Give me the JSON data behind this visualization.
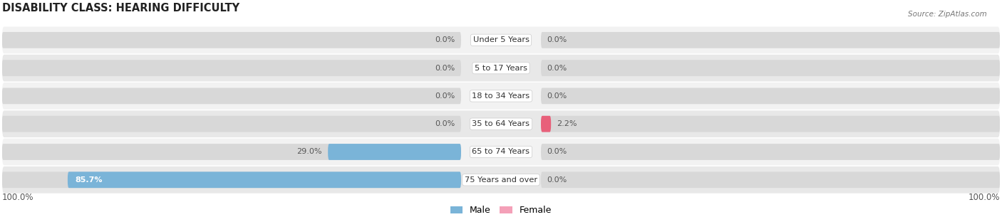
{
  "title": "DISABILITY CLASS: HEARING DIFFICULTY",
  "source": "Source: ZipAtlas.com",
  "categories": [
    "Under 5 Years",
    "5 to 17 Years",
    "18 to 34 Years",
    "35 to 64 Years",
    "65 to 74 Years",
    "75 Years and over"
  ],
  "male_values": [
    0.0,
    0.0,
    0.0,
    0.0,
    29.0,
    85.7
  ],
  "female_values": [
    0.0,
    0.0,
    0.0,
    2.2,
    0.0,
    0.0
  ],
  "male_color": "#7ab4d8",
  "female_color": "#f4a0b8",
  "female_color_dark": "#e8607a",
  "bar_bg_color": "#d8d8d8",
  "row_bg_even": "#f2f2f2",
  "row_bg_odd": "#e8e8e8",
  "label_left_100": "100.0%",
  "label_right_100": "100.0%",
  "male_label": "Male",
  "female_label": "Female",
  "max_value": 100.0,
  "figsize": [
    14.06,
    3.05
  ],
  "dpi": 100
}
